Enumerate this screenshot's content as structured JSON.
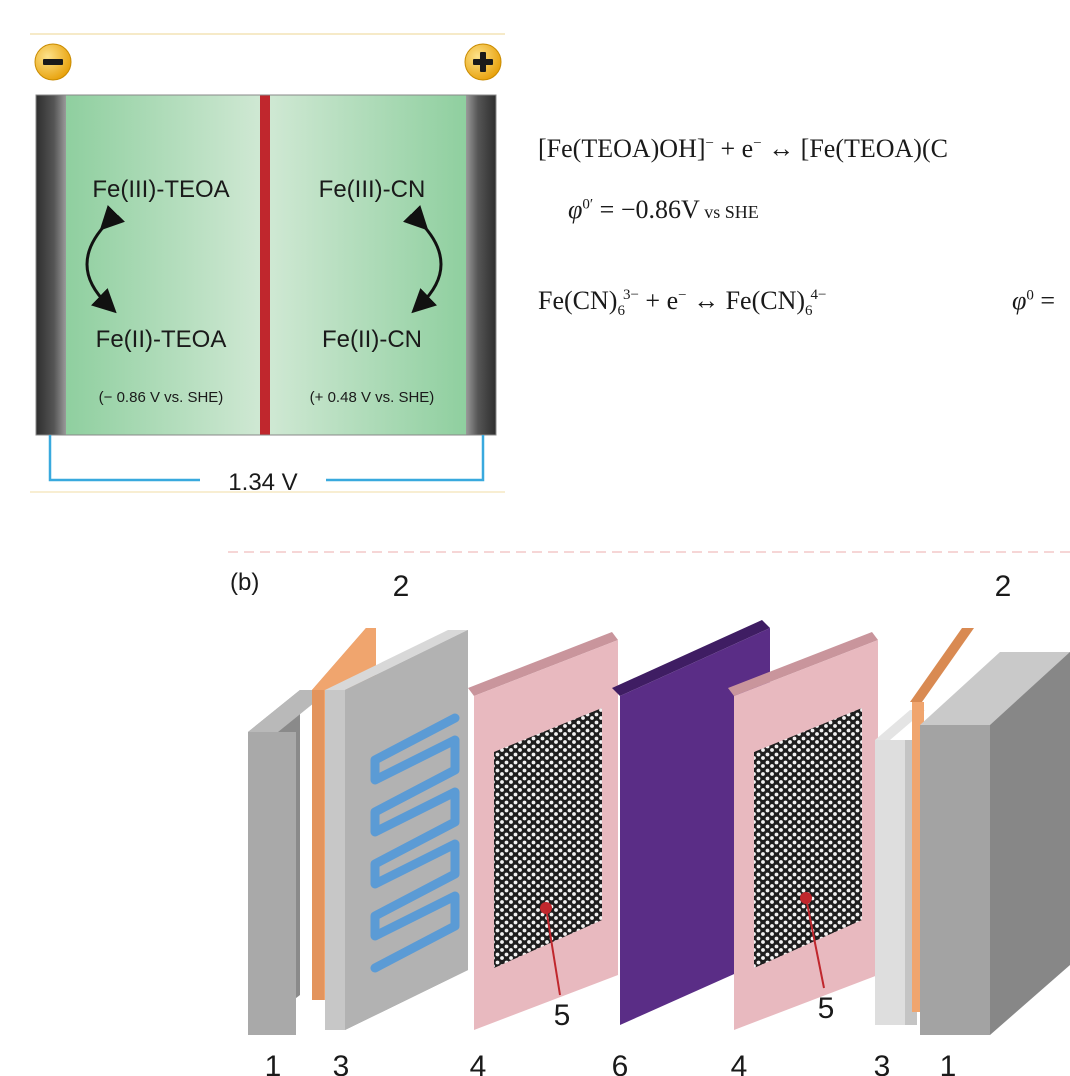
{
  "cell": {
    "negative_terminal": "−",
    "positive_terminal": "+",
    "left_top": "Fe(III)-TEOA",
    "left_bottom": "Fe(II)-TEOA",
    "left_potential": "(− 0.86 V vs. SHE)",
    "right_top": "Fe(III)-CN",
    "right_bottom": "Fe(II)-CN",
    "right_potential": "(+ 0.48 V vs. SHE)",
    "cell_voltage": "1.34 V"
  },
  "equations": {
    "eq1_left": "[Fe(TEOA)OH]",
    "eq1_charge": "−",
    "eq1_mid": " + e",
    "eq1_e_charge": "−",
    "eq1_arrow": " ↔ ",
    "eq1_right": "[Fe(TEOA)(C",
    "eq1_phi": "φ",
    "eq1_phi_sup": "0′",
    "eq1_value": " = −0.86V",
    "eq1_vs": " vs SHE",
    "eq2_left": "Fe(CN)",
    "eq2_sub": "6",
    "eq2_sup": "3−",
    "eq2_mid": " + e",
    "eq2_e_charge": "−",
    "eq2_arrow": " ↔ Fe(CN)",
    "eq2_sub2": "6",
    "eq2_sup2": "4−",
    "eq2_phi": "φ",
    "eq2_phi_sup": "0",
    "eq2_tail": " ="
  },
  "stack": {
    "panel_label": "(b)",
    "labels_bottom": [
      "1",
      "3",
      "4",
      "6",
      "4",
      "3",
      "1"
    ],
    "label_top_left": "2",
    "label_top_right": "2",
    "label_felt_left": "5",
    "label_felt_right": "5"
  },
  "colors": {
    "electrolyte_green": "#b9dfc3",
    "membrane_red": "#c0272d",
    "electrode_dark": "#3a3a3a",
    "wire_blue": "#39a9de",
    "terminal_yellow": "#f3b41b",
    "current_collector": "#f0a56e",
    "gasket_pink": "#e8b9bf",
    "membrane_purple": "#5a2d86",
    "flow_channel_blue": "#5b9bd5"
  }
}
